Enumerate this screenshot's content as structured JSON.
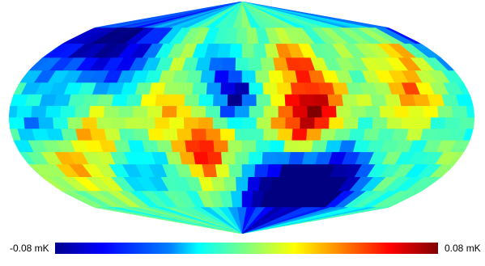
{
  "chart_data": {
    "type": "heatmap",
    "projection": "mollweide",
    "title": "",
    "colorbar": {
      "min_label": "-0.08 mK",
      "max_label": "0.08 mK",
      "vmin": -0.08,
      "vmax": 0.08,
      "unit": "mK",
      "colormap": "jet"
    },
    "grid": "off",
    "pixel_rows": 16,
    "pixel_cols": 32,
    "blobs": [
      {
        "lon": 160,
        "lat": 55,
        "amp": -0.075,
        "w": 22
      },
      {
        "lon": 100,
        "lat": 40,
        "amp": -0.06,
        "w": 18
      },
      {
        "lon": -55,
        "lat": -55,
        "amp": -0.08,
        "w": 22
      },
      {
        "lon": -30,
        "lat": -48,
        "amp": -0.06,
        "w": 18
      },
      {
        "lon": -85,
        "lat": -40,
        "amp": -0.05,
        "w": 16
      },
      {
        "lon": 5,
        "lat": 12,
        "amp": -0.07,
        "w": 10
      },
      {
        "lon": 20,
        "lat": 32,
        "amp": -0.04,
        "w": 14
      },
      {
        "lon": 85,
        "lat": -35,
        "amp": -0.035,
        "w": 14
      },
      {
        "lon": 160,
        "lat": -10,
        "amp": -0.03,
        "w": 16
      },
      {
        "lon": -165,
        "lat": -20,
        "amp": -0.03,
        "w": 16
      },
      {
        "lon": 135,
        "lat": -5,
        "amp": -0.025,
        "w": 14
      },
      {
        "lon": -150,
        "lat": 45,
        "amp": 0.045,
        "w": 12
      },
      {
        "lon": -45,
        "lat": 35,
        "amp": 0.05,
        "w": 10
      },
      {
        "lon": -62,
        "lat": 10,
        "amp": 0.06,
        "w": 12
      },
      {
        "lon": -40,
        "lat": 0,
        "amp": 0.04,
        "w": 14
      },
      {
        "lon": 30,
        "lat": -20,
        "amp": 0.065,
        "w": 12
      },
      {
        "lon": 120,
        "lat": -10,
        "amp": 0.045,
        "w": 14
      },
      {
        "lon": 150,
        "lat": -30,
        "amp": 0.045,
        "w": 12
      },
      {
        "lon": -135,
        "lat": 15,
        "amp": 0.04,
        "w": 14
      },
      {
        "lon": -170,
        "lat": -20,
        "amp": 0.04,
        "w": 10
      },
      {
        "lon": -50,
        "lat": -10,
        "amp": 0.035,
        "w": 12
      },
      {
        "lon": 60,
        "lat": 5,
        "amp": 0.03,
        "w": 14
      },
      {
        "lon": 0,
        "lat": -50,
        "amp": 0.025,
        "w": 16
      },
      {
        "lon": 70,
        "lat": 45,
        "amp": 0.02,
        "w": 14
      }
    ]
  }
}
